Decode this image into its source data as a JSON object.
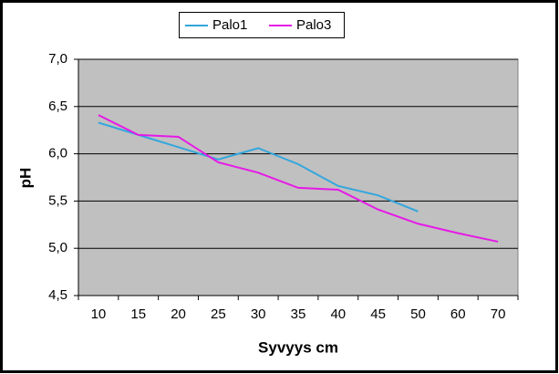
{
  "chart_data": {
    "type": "line",
    "x_label": "Syvyys cm",
    "y_label": "pH",
    "categories": [
      "10",
      "15",
      "20",
      "25",
      "30",
      "35",
      "40",
      "45",
      "50",
      "60",
      "70"
    ],
    "series": [
      {
        "name": "Palo1",
        "color": "#33a6dd",
        "values": [
          6.33,
          6.2,
          6.07,
          5.94,
          6.06,
          5.89,
          5.66,
          5.56,
          5.39,
          null,
          null
        ]
      },
      {
        "name": "Palo3",
        "color": "#e619e6",
        "values": [
          6.41,
          6.2,
          6.18,
          5.91,
          5.8,
          5.64,
          5.62,
          5.41,
          5.26,
          5.16,
          5.07
        ]
      }
    ],
    "ylim": [
      4.5,
      7.0
    ],
    "yticks": [
      {
        "value": 4.5,
        "label": "4,5"
      },
      {
        "value": 5.0,
        "label": "5,0"
      },
      {
        "value": 5.5,
        "label": "5,5"
      },
      {
        "value": 6.0,
        "label": "6,0"
      },
      {
        "value": 6.5,
        "label": "6,5"
      },
      {
        "value": 7.0,
        "label": "7,0"
      }
    ],
    "grid": true,
    "legend": "top",
    "plot_background": "#c0c0c0"
  }
}
